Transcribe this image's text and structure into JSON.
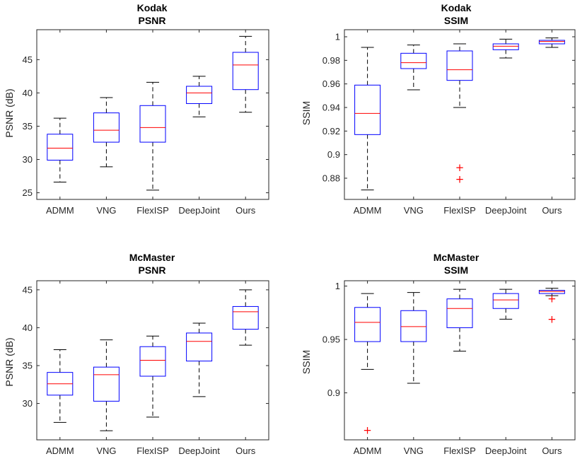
{
  "chart_data": [
    {
      "type": "boxplot",
      "title_line1": "Kodak",
      "title_line2": "PSNR",
      "ylabel": "PSNR (dB)",
      "ylim": [
        24,
        49.5
      ],
      "yticks": [
        25,
        30,
        35,
        40,
        45
      ],
      "yticklabels": [
        "25",
        "30",
        "35",
        "40",
        "45"
      ],
      "categories": [
        "ADMM",
        "VNG",
        "FlexISP",
        "DeepJoint",
        "Ours"
      ],
      "boxes": [
        {
          "min": 26.6,
          "q1": 29.9,
          "median": 31.7,
          "q3": 33.8,
          "max": 36.2,
          "outliers": []
        },
        {
          "min": 28.9,
          "q1": 32.6,
          "median": 34.4,
          "q3": 37.0,
          "max": 39.3,
          "outliers": []
        },
        {
          "min": 25.4,
          "q1": 32.6,
          "median": 34.8,
          "q3": 38.1,
          "max": 41.6,
          "outliers": []
        },
        {
          "min": 36.4,
          "q1": 38.4,
          "median": 40.0,
          "q3": 41.0,
          "max": 42.5,
          "outliers": []
        },
        {
          "min": 37.1,
          "q1": 40.5,
          "median": 44.2,
          "q3": 46.1,
          "max": 48.5,
          "outliers": []
        }
      ]
    },
    {
      "type": "boxplot",
      "title_line1": "Kodak",
      "title_line2": "SSIM",
      "ylabel": "SSIM",
      "ylim": [
        0.862,
        1.006
      ],
      "yticks": [
        0.88,
        0.9,
        0.92,
        0.94,
        0.96,
        0.98,
        1
      ],
      "yticklabels": [
        "0.88",
        "0.9",
        "0.92",
        "0.94",
        "0.96",
        "0.98",
        "1"
      ],
      "categories": [
        "ADMM",
        "VNG",
        "FlexISP",
        "DeepJoint",
        "Ours"
      ],
      "boxes": [
        {
          "min": 0.87,
          "q1": 0.917,
          "median": 0.935,
          "q3": 0.959,
          "max": 0.991,
          "outliers": []
        },
        {
          "min": 0.955,
          "q1": 0.973,
          "median": 0.978,
          "q3": 0.986,
          "max": 0.993,
          "outliers": []
        },
        {
          "min": 0.94,
          "q1": 0.963,
          "median": 0.972,
          "q3": 0.988,
          "max": 0.994,
          "outliers": [
            0.889,
            0.879
          ]
        },
        {
          "min": 0.982,
          "q1": 0.989,
          "median": 0.992,
          "q3": 0.994,
          "max": 0.998,
          "outliers": []
        },
        {
          "min": 0.991,
          "q1": 0.994,
          "median": 0.996,
          "q3": 0.997,
          "max": 0.999,
          "outliers": []
        }
      ]
    },
    {
      "type": "boxplot",
      "title_line1": "McMaster",
      "title_line2": "PSNR",
      "ylabel": "PSNR (dB)",
      "ylim": [
        25.2,
        46.2
      ],
      "yticks": [
        30,
        35,
        40,
        45
      ],
      "yticklabels": [
        "30",
        "35",
        "40",
        "45"
      ],
      "categories": [
        "ADMM",
        "VNG",
        "FlexISP",
        "DeepJoint",
        "Ours"
      ],
      "boxes": [
        {
          "min": 27.5,
          "q1": 31.1,
          "median": 32.6,
          "q3": 34.1,
          "max": 37.1,
          "outliers": []
        },
        {
          "min": 26.4,
          "q1": 30.3,
          "median": 33.8,
          "q3": 34.8,
          "max": 38.4,
          "outliers": []
        },
        {
          "min": 28.2,
          "q1": 33.6,
          "median": 35.7,
          "q3": 37.5,
          "max": 38.9,
          "outliers": []
        },
        {
          "min": 30.9,
          "q1": 35.6,
          "median": 38.2,
          "q3": 39.3,
          "max": 40.6,
          "outliers": []
        },
        {
          "min": 37.7,
          "q1": 39.8,
          "median": 42.1,
          "q3": 42.8,
          "max": 45.0,
          "outliers": []
        }
      ]
    },
    {
      "type": "boxplot",
      "title_line1": "McMaster",
      "title_line2": "SSIM",
      "ylabel": "SSIM",
      "ylim": [
        0.856,
        1.005
      ],
      "yticks": [
        0.9,
        0.95,
        1
      ],
      "yticklabels": [
        "0.9",
        "0.95",
        "1"
      ],
      "categories": [
        "ADMM",
        "VNG",
        "FlexISP",
        "DeepJoint",
        "Ours"
      ],
      "boxes": [
        {
          "min": 0.922,
          "q1": 0.948,
          "median": 0.966,
          "q3": 0.98,
          "max": 0.993,
          "outliers": [
            0.865
          ]
        },
        {
          "min": 0.909,
          "q1": 0.948,
          "median": 0.962,
          "q3": 0.977,
          "max": 0.994,
          "outliers": []
        },
        {
          "min": 0.939,
          "q1": 0.961,
          "median": 0.979,
          "q3": 0.988,
          "max": 0.997,
          "outliers": []
        },
        {
          "min": 0.969,
          "q1": 0.979,
          "median": 0.987,
          "q3": 0.993,
          "max": 0.997,
          "outliers": []
        },
        {
          "min": 0.991,
          "q1": 0.993,
          "median": 0.995,
          "q3": 0.996,
          "max": 0.998,
          "outliers": [
            0.988,
            0.969
          ]
        }
      ]
    }
  ]
}
